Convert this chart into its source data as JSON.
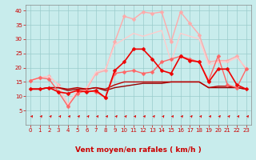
{
  "xlabel": "Vent moyen/en rafales ( km/h )",
  "bg_color": "#c8ecec",
  "grid_color": "#99cccc",
  "xlim": [
    -0.5,
    23.5
  ],
  "ylim": [
    0,
    42
  ],
  "yticks": [
    5,
    10,
    15,
    20,
    25,
    30,
    35,
    40
  ],
  "xticks": [
    0,
    1,
    2,
    3,
    4,
    5,
    6,
    7,
    8,
    9,
    10,
    11,
    12,
    13,
    14,
    15,
    16,
    17,
    18,
    19,
    20,
    21,
    22,
    23
  ],
  "lines": [
    {
      "x": [
        0,
        1,
        2,
        3,
        4,
        5,
        6,
        7,
        8,
        9,
        10,
        11,
        12,
        13,
        14,
        15,
        16,
        17,
        18,
        19,
        20,
        21,
        22,
        23
      ],
      "y": [
        12.5,
        12.5,
        13.0,
        11.5,
        11.0,
        12.0,
        11.5,
        12.0,
        9.5,
        19.0,
        22.0,
        26.5,
        26.5,
        23.0,
        19.0,
        18.0,
        24.0,
        22.5,
        22.0,
        15.0,
        19.5,
        19.5,
        14.0,
        12.5
      ],
      "color": "#ee0000",
      "lw": 1.2,
      "marker": "D",
      "ms": 2.5,
      "zorder": 5
    },
    {
      "x": [
        0,
        1,
        2,
        3,
        4,
        5,
        6,
        7,
        8,
        9,
        10,
        11,
        12,
        13,
        14,
        15,
        16,
        17,
        18,
        19,
        20,
        21,
        22,
        23
      ],
      "y": [
        12.5,
        12.5,
        13.0,
        13.0,
        12.0,
        12.5,
        12.5,
        13.0,
        12.0,
        13.0,
        13.5,
        14.0,
        14.5,
        14.5,
        14.5,
        15.0,
        15.0,
        15.0,
        15.0,
        13.0,
        13.0,
        13.0,
        13.0,
        12.5
      ],
      "color": "#990000",
      "lw": 1.0,
      "marker": null,
      "ms": 0,
      "zorder": 3
    },
    {
      "x": [
        0,
        1,
        2,
        3,
        4,
        5,
        6,
        7,
        8,
        9,
        10,
        11,
        12,
        13,
        14,
        15,
        16,
        17,
        18,
        19,
        20,
        21,
        22,
        23
      ],
      "y": [
        12.5,
        12.5,
        13.0,
        13.0,
        12.5,
        13.0,
        12.5,
        13.0,
        12.5,
        14.0,
        15.0,
        15.0,
        15.0,
        15.0,
        15.0,
        15.0,
        15.0,
        15.0,
        15.0,
        13.0,
        13.5,
        13.5,
        13.0,
        12.5
      ],
      "color": "#bb0000",
      "lw": 1.0,
      "marker": null,
      "ms": 0,
      "zorder": 3
    },
    {
      "x": [
        0,
        1,
        2,
        3,
        4,
        5,
        6,
        7,
        8,
        9,
        10,
        11,
        12,
        13,
        14,
        15,
        16,
        17,
        18,
        19,
        20,
        21,
        22,
        23
      ],
      "y": [
        15.5,
        16.5,
        16.0,
        11.5,
        6.5,
        11.0,
        12.0,
        11.5,
        9.5,
        18.0,
        18.5,
        19.0,
        18.0,
        18.5,
        22.0,
        23.0,
        24.0,
        23.0,
        22.0,
        15.5,
        24.0,
        14.0,
        13.0,
        19.5
      ],
      "color": "#ff6666",
      "lw": 1.0,
      "marker": "D",
      "ms": 2.5,
      "zorder": 4
    },
    {
      "x": [
        0,
        1,
        2,
        3,
        4,
        5,
        6,
        7,
        8,
        9,
        10,
        11,
        12,
        13,
        14,
        15,
        16,
        17,
        18,
        19,
        20,
        21,
        22,
        23
      ],
      "y": [
        15.5,
        16.5,
        17.0,
        14.0,
        7.0,
        11.5,
        12.5,
        18.0,
        19.0,
        29.0,
        38.0,
        37.0,
        39.5,
        39.0,
        39.5,
        29.0,
        39.5,
        35.5,
        31.5,
        22.0,
        22.5,
        22.5,
        24.0,
        19.5
      ],
      "color": "#ffaaaa",
      "lw": 1.0,
      "marker": "D",
      "ms": 2.5,
      "zorder": 2
    },
    {
      "x": [
        0,
        1,
        2,
        3,
        4,
        5,
        6,
        7,
        8,
        9,
        10,
        11,
        12,
        13,
        14,
        15,
        16,
        17,
        18,
        19,
        20,
        21,
        22,
        23
      ],
      "y": [
        15.5,
        16.5,
        17.0,
        14.0,
        7.0,
        12.0,
        13.0,
        18.5,
        19.5,
        28.0,
        30.0,
        32.0,
        31.0,
        32.0,
        33.0,
        22.0,
        32.0,
        31.0,
        30.0,
        21.0,
        22.0,
        22.0,
        23.5,
        20.0
      ],
      "color": "#ffcccc",
      "lw": 1.0,
      "marker": null,
      "ms": 0,
      "zorder": 2
    }
  ],
  "arrow_color": "#dd0000",
  "xlabel_color": "#cc0000",
  "tick_color": "#cc0000",
  "xlabel_fontsize": 6.5,
  "tick_fontsize": 5.0
}
